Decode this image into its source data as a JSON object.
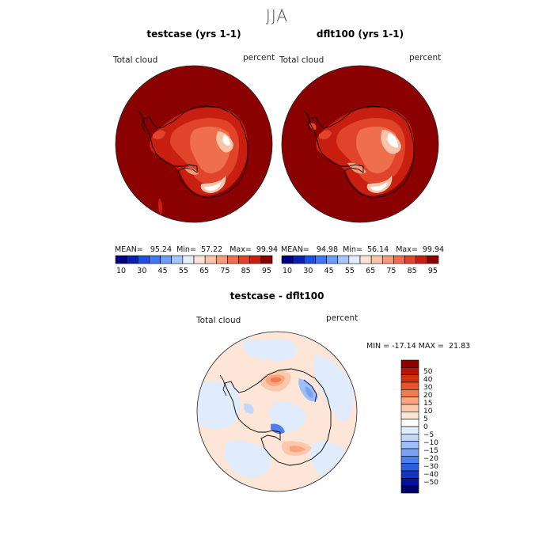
{
  "figure": {
    "season": "JJA"
  },
  "panels": [
    {
      "title": "testcase (yrs 1-1)",
      "variable": "Total cloud",
      "units": "percent",
      "stats": {
        "mean_label": "MEAN=",
        "mean": "95.24",
        "min_label": "Min=",
        "min": "57.22",
        "max_label": "Max=",
        "max": "99.94"
      }
    },
    {
      "title": "dflt100 (yrs 1-1)",
      "variable": "Total cloud",
      "units": "percent",
      "stats": {
        "mean_label": "MEAN=",
        "mean": "94.98",
        "min_label": "Min=",
        "min": "56.14",
        "max_label": "Max=",
        "max": "99.94"
      }
    }
  ],
  "colorbar_abs": {
    "colors": [
      "#00007f",
      "#0a1fb0",
      "#1d4fe0",
      "#3f78f0",
      "#6f9cf6",
      "#a8c6fa",
      "#e4eefc",
      "#fde4d6",
      "#fbc3a8",
      "#f79a77",
      "#ef6e4c",
      "#e0442a",
      "#c81f10",
      "#8b0000"
    ],
    "tick_labels": [
      "10",
      "30",
      "45",
      "55",
      "65",
      "75",
      "85",
      "95"
    ]
  },
  "difference": {
    "title": "testcase - dflt100",
    "variable": "Total cloud",
    "units": "percent",
    "minmax": {
      "min_label": "MIN =",
      "min": "-17.14",
      "max_label": "MAX =",
      "max": "21.83"
    },
    "colorbar": {
      "colors": [
        "#8b0000",
        "#b3150a",
        "#d3300f",
        "#e85428",
        "#f27c52",
        "#f8a580",
        "#fbc8ac",
        "#fde6d8",
        "#ffffff",
        "#e0ecfb",
        "#c3d8f8",
        "#9fbef5",
        "#7aa2f1",
        "#4f80ea",
        "#2c5ce0",
        "#1534c0",
        "#0010a0",
        "#000066"
      ],
      "tick_labels": [
        "50",
        "40",
        "30",
        "20",
        "15",
        "10",
        "5",
        "0",
        "−5",
        "−10",
        "−15",
        "−20",
        "−30",
        "−40",
        "−50"
      ]
    }
  }
}
